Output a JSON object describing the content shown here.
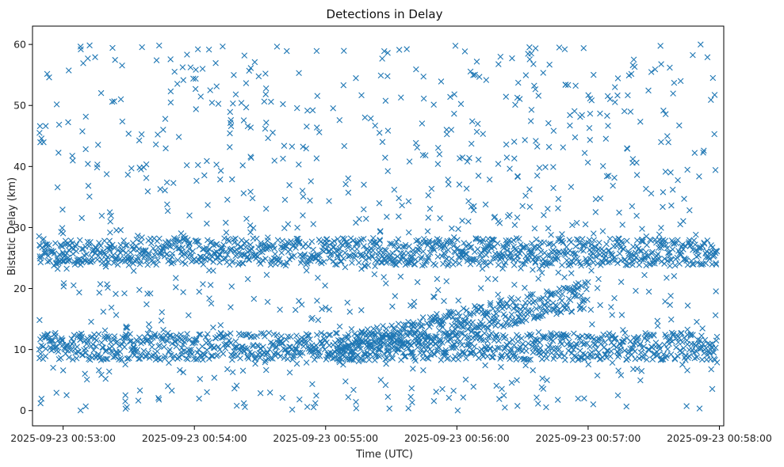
{
  "chart_data": {
    "type": "scatter",
    "title": "Detections in Delay",
    "xlabel": "Time (UTC)",
    "ylabel": "Bistatic Delay (km)",
    "x_axis": {
      "kind": "time",
      "range": [
        "2025-09-23 00:52:46",
        "2025-09-23 00:58:02"
      ],
      "ticks": [
        "2025-09-23 00:53:00",
        "2025-09-23 00:54:00",
        "2025-09-23 00:55:00",
        "2025-09-23 00:56:00",
        "2025-09-23 00:57:00",
        "2025-09-23 00:58:00"
      ]
    },
    "ylim": [
      -2.5,
      63
    ],
    "y_ticks": [
      0,
      10,
      20,
      30,
      40,
      50,
      60
    ],
    "grid": false,
    "legend": null,
    "marker": "x",
    "color": "#1f77b4",
    "data_range": {
      "time": [
        "2025-09-23 00:52:49",
        "2025-09-23 00:57:59"
      ],
      "delay_km": [
        0,
        60
      ]
    },
    "tracks": [
      {
        "from": {
          "time": "2025-09-23 00:52:49",
          "delay_km": 26.0
        },
        "to": {
          "time": "2025-09-23 00:57:59",
          "delay_km": 26.0
        }
      },
      {
        "from": {
          "time": "2025-09-23 00:52:49",
          "delay_km": 10.5
        },
        "to": {
          "time": "2025-09-23 00:57:59",
          "delay_km": 10.5
        }
      },
      {
        "from": {
          "time": "2025-09-23 00:55:05",
          "delay_km": 10.0
        },
        "to": {
          "time": "2025-09-23 00:57:00",
          "delay_km": 19.0
        }
      }
    ]
  }
}
